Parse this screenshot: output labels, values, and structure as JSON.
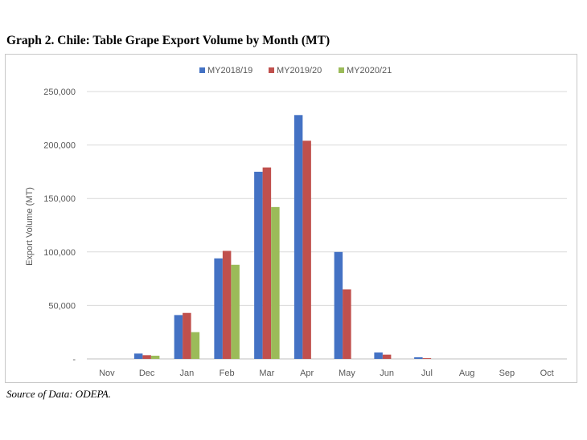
{
  "heading": "Graph 2. Chile: Table Grape Export Volume by Month (MT)",
  "source": "Source of Data: ODEPA.",
  "chart_data": {
    "type": "bar",
    "title": "Graph 2. Chile: Table Grape Export Volume by Month (MT)",
    "ylabel": "Export Volume (MT)",
    "xlabel": "",
    "ylim": [
      0,
      250000
    ],
    "yticks": [
      0,
      50000,
      100000,
      150000,
      200000,
      250000
    ],
    "ytick_labels": [
      "-",
      "50,000",
      "100,000",
      "150,000",
      "200,000",
      "250,000"
    ],
    "grid": true,
    "legend_position": "top",
    "categories": [
      "Nov",
      "Dec",
      "Jan",
      "Feb",
      "Mar",
      "Apr",
      "May",
      "Jun",
      "Jul",
      "Aug",
      "Sep",
      "Oct"
    ],
    "series": [
      {
        "name": "MY2018/19",
        "color": "#4472c4",
        "values": [
          0,
          5000,
          41000,
          94000,
          175000,
          228000,
          100000,
          6000,
          1500,
          0,
          0,
          0
        ]
      },
      {
        "name": "MY2019/20",
        "color": "#c0504d",
        "values": [
          0,
          3500,
          43000,
          101000,
          179000,
          204000,
          65000,
          4000,
          700,
          0,
          0,
          0
        ]
      },
      {
        "name": "MY2020/21",
        "color": "#9bbb59",
        "values": [
          0,
          3000,
          25000,
          88000,
          142000,
          null,
          null,
          null,
          null,
          null,
          null,
          null
        ]
      }
    ]
  }
}
